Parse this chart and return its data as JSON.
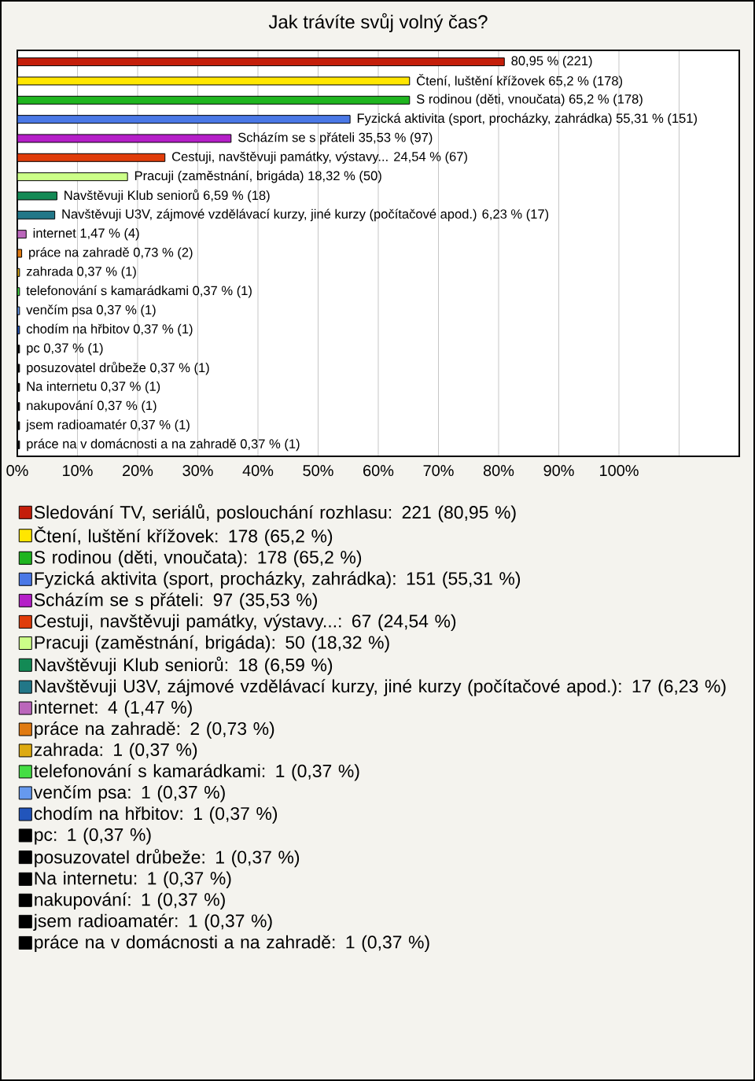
{
  "chart_data": {
    "type": "bar",
    "orientation": "horizontal",
    "title": "Jak trávíte svůj volný čas?",
    "categories": [
      null,
      null,
      null,
      null,
      null,
      null,
      null,
      null,
      null,
      null,
      null,
      null,
      null,
      null,
      null,
      null,
      null,
      null,
      null,
      null,
      null
    ],
    "xlim": [
      0,
      120
    ],
    "xticks": [
      {
        "value": 0,
        "label": "0%"
      },
      {
        "value": 10,
        "label": "10%"
      },
      {
        "value": 20,
        "label": "20%"
      },
      {
        "value": 30,
        "label": "30%"
      },
      {
        "value": 40,
        "label": "40%"
      },
      {
        "value": 50,
        "label": "50%"
      },
      {
        "value": 60,
        "label": "60%"
      },
      {
        "value": 70,
        "label": "70%"
      },
      {
        "value": 80,
        "label": "80%"
      },
      {
        "value": 90,
        "label": "90%"
      },
      {
        "value": 100,
        "label": "100%"
      },
      {
        "value": 110,
        "label": null
      }
    ],
    "grid": "x",
    "legend": "bottom",
    "series": [
      {
        "name": "Sledování TV, seriálů, poslouchání rozhlasu: 221 (80,95 %)",
        "color": "#c41e0a",
        "values": [
          80.95,
          null,
          null,
          null,
          null,
          null,
          null,
          null,
          null,
          null,
          null,
          null,
          null,
          null,
          null,
          null,
          null,
          null,
          null,
          null,
          null
        ],
        "value_labels": [
          "80,95 % (221)",
          null,
          null,
          null,
          null,
          null,
          null,
          null,
          null,
          null,
          null,
          null,
          null,
          null,
          null,
          null,
          null,
          null,
          null,
          null,
          null
        ]
      },
      {
        "name": "Čtení, luštění křížovek: 178 (65,2 %)",
        "color": "#ffe600",
        "values": [
          null,
          65.2,
          null,
          null,
          null,
          null,
          null,
          null,
          null,
          null,
          null,
          null,
          null,
          null,
          null,
          null,
          null,
          null,
          null,
          null,
          null
        ],
        "value_labels": [
          null,
          "Čtení, luštění křížovek 65,2 % (178)",
          null,
          null,
          null,
          null,
          null,
          null,
          null,
          null,
          null,
          null,
          null,
          null,
          null,
          null,
          null,
          null,
          null,
          null,
          null
        ]
      },
      {
        "name": "S rodinou (děti, vnoučata): 178 (65,2 %)",
        "color": "#1fb51f",
        "values": [
          null,
          null,
          65.2,
          null,
          null,
          null,
          null,
          null,
          null,
          null,
          null,
          null,
          null,
          null,
          null,
          null,
          null,
          null,
          null,
          null,
          null
        ],
        "value_labels": [
          null,
          null,
          "S rodinou (děti, vnoučata) 65,2 % (178)",
          null,
          null,
          null,
          null,
          null,
          null,
          null,
          null,
          null,
          null,
          null,
          null,
          null,
          null,
          null,
          null,
          null,
          null
        ]
      },
      {
        "name": "Fyzická aktivita (sport, procházky, zahrádka): 151 (55,31 %)",
        "color": "#4a78e6",
        "values": [
          null,
          null,
          null,
          55.31,
          null,
          null,
          null,
          null,
          null,
          null,
          null,
          null,
          null,
          null,
          null,
          null,
          null,
          null,
          null,
          null,
          null
        ],
        "value_labels": [
          null,
          null,
          null,
          "Fyzická aktivita (sport, procházky, zahrádka) 55,31 % (151)",
          null,
          null,
          null,
          null,
          null,
          null,
          null,
          null,
          null,
          null,
          null,
          null,
          null,
          null,
          null,
          null,
          null
        ]
      },
      {
        "name": "Scházím se s přáteli: 97 (35,53 %)",
        "color": "#b51fc8",
        "values": [
          null,
          null,
          null,
          null,
          35.53,
          null,
          null,
          null,
          null,
          null,
          null,
          null,
          null,
          null,
          null,
          null,
          null,
          null,
          null,
          null,
          null
        ],
        "value_labels": [
          null,
          null,
          null,
          null,
          "Scházím se s přáteli 35,53 % (97)",
          null,
          null,
          null,
          null,
          null,
          null,
          null,
          null,
          null,
          null,
          null,
          null,
          null,
          null,
          null,
          null
        ]
      },
      {
        "name": "Cestuji, navštěvuji památky, výstavy...: 67 (24,54 %)",
        "color": "#e03c0a",
        "values": [
          null,
          null,
          null,
          null,
          null,
          24.54,
          null,
          null,
          null,
          null,
          null,
          null,
          null,
          null,
          null,
          null,
          null,
          null,
          null,
          null,
          null
        ],
        "value_labels": [
          null,
          null,
          null,
          null,
          null,
          "Cestuji, navštěvuji památky, výstavy... 24,54 % (67)",
          null,
          null,
          null,
          null,
          null,
          null,
          null,
          null,
          null,
          null,
          null,
          null,
          null,
          null,
          null
        ]
      },
      {
        "name": "Pracuji (zaměstnání, brigáda): 50 (18,32 %)",
        "color": "#ccff88",
        "values": [
          null,
          null,
          null,
          null,
          null,
          null,
          18.32,
          null,
          null,
          null,
          null,
          null,
          null,
          null,
          null,
          null,
          null,
          null,
          null,
          null,
          null
        ],
        "value_labels": [
          null,
          null,
          null,
          null,
          null,
          null,
          "Pracuji (zaměstnání, brigáda) 18,32 % (50)",
          null,
          null,
          null,
          null,
          null,
          null,
          null,
          null,
          null,
          null,
          null,
          null,
          null,
          null
        ]
      },
      {
        "name": "Navštěvuji Klub seniorů: 18 (6,59 %)",
        "color": "#138a55",
        "values": [
          null,
          null,
          null,
          null,
          null,
          null,
          null,
          6.59,
          null,
          null,
          null,
          null,
          null,
          null,
          null,
          null,
          null,
          null,
          null,
          null,
          null
        ],
        "value_labels": [
          null,
          null,
          null,
          null,
          null,
          null,
          null,
          "Navštěvuji Klub seniorů 6,59 % (18)",
          null,
          null,
          null,
          null,
          null,
          null,
          null,
          null,
          null,
          null,
          null,
          null,
          null
        ]
      },
      {
        "name": "Navštěvuji U3V, zájmové vzdělávací kurzy, jiné kurzy (počítačové apod.): 17 (6,23 %)",
        "color": "#227788",
        "values": [
          null,
          null,
          null,
          null,
          null,
          null,
          null,
          null,
          6.23,
          null,
          null,
          null,
          null,
          null,
          null,
          null,
          null,
          null,
          null,
          null,
          null
        ],
        "value_labels": [
          null,
          null,
          null,
          null,
          null,
          null,
          null,
          null,
          "Navštěvuji U3V, zájmové vzdělávací kurzy, jiné kurzy (počítačové apod.) 6,23 % (17)",
          null,
          null,
          null,
          null,
          null,
          null,
          null,
          null,
          null,
          null,
          null,
          null
        ]
      },
      {
        "name": "internet: 4 (1,47 %)",
        "color": "#bb66bb",
        "values": [
          null,
          null,
          null,
          null,
          null,
          null,
          null,
          null,
          null,
          1.47,
          null,
          null,
          null,
          null,
          null,
          null,
          null,
          null,
          null,
          null,
          null
        ],
        "value_labels": [
          null,
          null,
          null,
          null,
          null,
          null,
          null,
          null,
          null,
          "internet 1,47 % (4)",
          null,
          null,
          null,
          null,
          null,
          null,
          null,
          null,
          null,
          null,
          null
        ]
      },
      {
        "name": "práce na zahradě: 2 (0,73 %)",
        "color": "#e07a10",
        "values": [
          null,
          null,
          null,
          null,
          null,
          null,
          null,
          null,
          null,
          null,
          0.73,
          null,
          null,
          null,
          null,
          null,
          null,
          null,
          null,
          null,
          null
        ],
        "value_labels": [
          null,
          null,
          null,
          null,
          null,
          null,
          null,
          null,
          null,
          null,
          "práce na zahradě 0,73 % (2)",
          null,
          null,
          null,
          null,
          null,
          null,
          null,
          null,
          null,
          null
        ]
      },
      {
        "name": "zahrada: 1 (0,37 %)",
        "color": "#ddaa10",
        "values": [
          null,
          null,
          null,
          null,
          null,
          null,
          null,
          null,
          null,
          null,
          null,
          0.37,
          null,
          null,
          null,
          null,
          null,
          null,
          null,
          null,
          null
        ],
        "value_labels": [
          null,
          null,
          null,
          null,
          null,
          null,
          null,
          null,
          null,
          null,
          null,
          "zahrada 0,37 % (1)",
          null,
          null,
          null,
          null,
          null,
          null,
          null,
          null,
          null
        ]
      },
      {
        "name": "telefonování s kamarádkami: 1 (0,37 %)",
        "color": "#44dd44",
        "values": [
          null,
          null,
          null,
          null,
          null,
          null,
          null,
          null,
          null,
          null,
          null,
          null,
          0.37,
          null,
          null,
          null,
          null,
          null,
          null,
          null,
          null
        ],
        "value_labels": [
          null,
          null,
          null,
          null,
          null,
          null,
          null,
          null,
          null,
          null,
          null,
          null,
          "telefonování s kamarádkami 0,37 % (1)",
          null,
          null,
          null,
          null,
          null,
          null,
          null,
          null
        ]
      },
      {
        "name": "venčím psa: 1 (0,37 %)",
        "color": "#6699ee",
        "values": [
          null,
          null,
          null,
          null,
          null,
          null,
          null,
          null,
          null,
          null,
          null,
          null,
          null,
          0.37,
          null,
          null,
          null,
          null,
          null,
          null,
          null
        ],
        "value_labels": [
          null,
          null,
          null,
          null,
          null,
          null,
          null,
          null,
          null,
          null,
          null,
          null,
          null,
          "venčím psa 0,37 % (1)",
          null,
          null,
          null,
          null,
          null,
          null,
          null
        ]
      },
      {
        "name": "chodím na hřbitov: 1 (0,37 %)",
        "color": "#2255bb",
        "values": [
          null,
          null,
          null,
          null,
          null,
          null,
          null,
          null,
          null,
          null,
          null,
          null,
          null,
          null,
          0.37,
          null,
          null,
          null,
          null,
          null,
          null
        ],
        "value_labels": [
          null,
          null,
          null,
          null,
          null,
          null,
          null,
          null,
          null,
          null,
          null,
          null,
          null,
          null,
          "chodím na hřbitov 0,37 % (1)",
          null,
          null,
          null,
          null,
          null,
          null
        ]
      },
      {
        "name": "pc: 1 (0,37 %)",
        "color": "#000000",
        "values": [
          null,
          null,
          null,
          null,
          null,
          null,
          null,
          null,
          null,
          null,
          null,
          null,
          null,
          null,
          null,
          0.37,
          null,
          null,
          null,
          null,
          null
        ],
        "value_labels": [
          null,
          null,
          null,
          null,
          null,
          null,
          null,
          null,
          null,
          null,
          null,
          null,
          null,
          null,
          null,
          "pc 0,37 % (1)",
          null,
          null,
          null,
          null,
          null
        ]
      },
      {
        "name": "posuzovatel drůbeže: 1 (0,37 %)",
        "color": "#000000",
        "values": [
          null,
          null,
          null,
          null,
          null,
          null,
          null,
          null,
          null,
          null,
          null,
          null,
          null,
          null,
          null,
          null,
          0.37,
          null,
          null,
          null,
          null
        ],
        "value_labels": [
          null,
          null,
          null,
          null,
          null,
          null,
          null,
          null,
          null,
          null,
          null,
          null,
          null,
          null,
          null,
          null,
          "posuzovatel drůbeže 0,37 % (1)",
          null,
          null,
          null,
          null
        ]
      },
      {
        "name": "Na internetu: 1 (0,37 %)",
        "color": "#000000",
        "values": [
          null,
          null,
          null,
          null,
          null,
          null,
          null,
          null,
          null,
          null,
          null,
          null,
          null,
          null,
          null,
          null,
          null,
          0.37,
          null,
          null,
          null
        ],
        "value_labels": [
          null,
          null,
          null,
          null,
          null,
          null,
          null,
          null,
          null,
          null,
          null,
          null,
          null,
          null,
          null,
          null,
          null,
          "Na internetu 0,37 % (1)",
          null,
          null,
          null
        ]
      },
      {
        "name": "nakupování: 1 (0,37 %)",
        "color": "#000000",
        "values": [
          null,
          null,
          null,
          null,
          null,
          null,
          null,
          null,
          null,
          null,
          null,
          null,
          null,
          null,
          null,
          null,
          null,
          null,
          0.37,
          null,
          null
        ],
        "value_labels": [
          null,
          null,
          null,
          null,
          null,
          null,
          null,
          null,
          null,
          null,
          null,
          null,
          null,
          null,
          null,
          null,
          null,
          null,
          "nakupování 0,37 % (1)",
          null,
          null
        ]
      },
      {
        "name": "jsem radioamatér: 1 (0,37 %)",
        "color": "#000000",
        "values": [
          null,
          null,
          null,
          null,
          null,
          null,
          null,
          null,
          null,
          null,
          null,
          null,
          null,
          null,
          null,
          null,
          null,
          null,
          null,
          0.37,
          null
        ],
        "value_labels": [
          null,
          null,
          null,
          null,
          null,
          null,
          null,
          null,
          null,
          null,
          null,
          null,
          null,
          null,
          null,
          null,
          null,
          null,
          null,
          "jsem radioamatér 0,37 % (1)",
          null
        ]
      },
      {
        "name": "práce na v domácnosti a na zahradě: 1 (0,37 %)",
        "color": "#000000",
        "values": [
          null,
          null,
          null,
          null,
          null,
          null,
          null,
          null,
          null,
          null,
          null,
          null,
          null,
          null,
          null,
          null,
          null,
          null,
          null,
          null,
          0.37
        ],
        "value_labels": [
          null,
          null,
          null,
          null,
          null,
          null,
          null,
          null,
          null,
          null,
          null,
          null,
          null,
          null,
          null,
          null,
          null,
          null,
          null,
          null,
          "práce na v domácnosti a na zahradě 0,37 % (1)"
        ]
      }
    ]
  }
}
